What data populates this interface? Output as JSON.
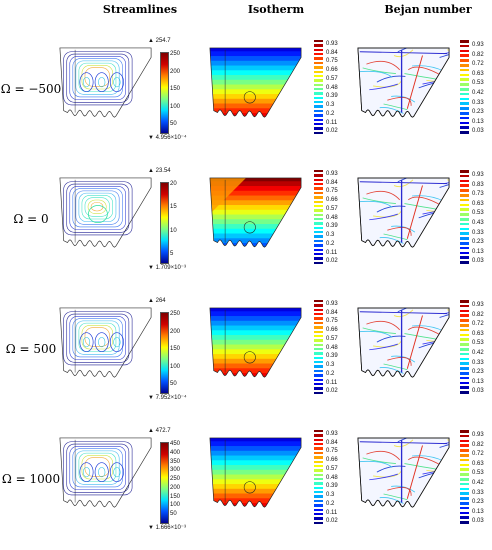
{
  "columns": [
    "Streamlines",
    "Isotherm",
    "Bejan number"
  ],
  "rows": [
    {
      "label": "Ω = −500",
      "stream": {
        "max": "▲ 254.7",
        "min": "▼ 4.956×10⁻⁴",
        "ticks": [
          "250",
          "200",
          "150",
          "100",
          "50"
        ]
      }
    },
    {
      "label": "Ω = 0",
      "stream": {
        "max": "▲ 23.54",
        "min": "▼ 1.709×10⁻³",
        "ticks": [
          "20",
          "15",
          "10",
          "5"
        ]
      }
    },
    {
      "label": "Ω = 500",
      "stream": {
        "max": "▲ 264",
        "min": "▼ 7.952×10⁻⁴",
        "ticks": [
          "250",
          "200",
          "150",
          "100",
          "50"
        ]
      }
    },
    {
      "label": "Ω = 1000",
      "stream": {
        "max": "▲ 472.7",
        "min": "▼ 1.666×10⁻³",
        "ticks": [
          "450",
          "400",
          "350",
          "300",
          "250",
          "200",
          "150",
          "100",
          "50"
        ]
      }
    }
  ],
  "isotherm_ticks": [
    "0.93",
    "0.84",
    "0.75",
    "0.66",
    "0.57",
    "0.48",
    "0.39",
    "0.3",
    "0.2",
    "0.11",
    "0.02"
  ],
  "bejan_ticks": [
    [
      "0.93",
      "0.82",
      "0.72",
      "0.63",
      "0.53",
      "0.42",
      "0.33",
      "0.23",
      "0.13",
      "0.03"
    ],
    [
      "0.93",
      "0.83",
      "0.73",
      "0.63",
      "0.53",
      "0.43",
      "0.33",
      "0.23",
      "0.13",
      "0.03"
    ],
    [
      "0.93",
      "0.82",
      "0.72",
      "0.63",
      "0.53",
      "0.42",
      "0.33",
      "0.23",
      "0.13",
      "0.03"
    ],
    [
      "0.93",
      "0.82",
      "0.72",
      "0.63",
      "0.53",
      "0.42",
      "0.33",
      "0.23",
      "0.13",
      "0.03"
    ]
  ]
}
